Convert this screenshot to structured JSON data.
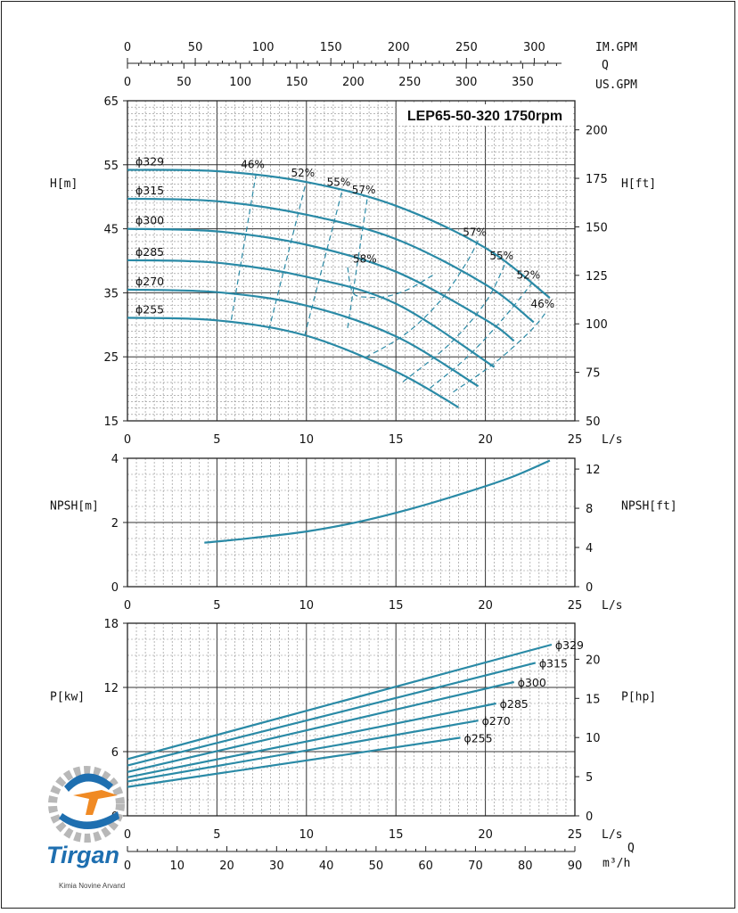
{
  "chart_data": [
    {
      "type": "line",
      "title": "LEP65-50-320 1750rpm",
      "xlabel": "L/s",
      "ylabel": "H[m]",
      "ylabel_right": "H[ft]",
      "xlim": [
        0,
        25
      ],
      "ylim": [
        15,
        65
      ],
      "y2lim": [
        50,
        215
      ],
      "x_ticks": [
        "0",
        "5",
        "10",
        "15",
        "20",
        "25"
      ],
      "y_ticks": [
        "15",
        "25",
        "35",
        "45",
        "55",
        "65"
      ],
      "y2_ticks": [
        "50",
        "75",
        "100",
        "125",
        "150",
        "175",
        "200"
      ],
      "top_axes": [
        {
          "label": "IM.GPM",
          "ticks": [
            "0",
            "50",
            "100",
            "150",
            "200",
            "250",
            "300"
          ],
          "lps_per_unit": 0.075768
        },
        {
          "label": "Q",
          "ticks": [],
          "lps_per_unit": 0
        },
        {
          "label": "US.GPM",
          "ticks": [
            "0",
            "50",
            "100",
            "150",
            "200",
            "250",
            "300",
            "350"
          ],
          "lps_per_unit": 0.06309
        }
      ],
      "series": [
        {
          "name": "ϕ329",
          "x": [
            0,
            5,
            10,
            15,
            20,
            23.6
          ],
          "y": [
            54.2,
            54.0,
            52.3,
            48.6,
            42.0,
            34.2
          ]
        },
        {
          "name": "ϕ315",
          "x": [
            0,
            5,
            10,
            15,
            20,
            22.7
          ],
          "y": [
            49.7,
            49.3,
            47.2,
            43.4,
            36.3,
            30.4
          ]
        },
        {
          "name": "ϕ300",
          "x": [
            0,
            5,
            10,
            15,
            20,
            21.6
          ],
          "y": [
            45.0,
            44.6,
            42.5,
            38.3,
            30.8,
            27.5
          ]
        },
        {
          "name": "ϕ285",
          "x": [
            0,
            5,
            10,
            15,
            20.5
          ],
          "y": [
            40.1,
            39.7,
            37.5,
            33.3,
            23.4
          ]
        },
        {
          "name": "ϕ270",
          "x": [
            0,
            5,
            10,
            15,
            19.6
          ],
          "y": [
            35.5,
            35.1,
            33.0,
            28.2,
            20.4
          ]
        },
        {
          "name": "ϕ255",
          "x": [
            0,
            5,
            10,
            15,
            18.5
          ],
          "y": [
            31.1,
            30.7,
            28.3,
            22.7,
            17.1
          ]
        }
      ],
      "efficiency_lines": [
        {
          "label": "46%",
          "x": [
            5.8,
            7.2
          ],
          "y": [
            30.8,
            53.8
          ]
        },
        {
          "label": "52%",
          "x": [
            7.9,
            10.0
          ],
          "y": [
            29.2,
            52.5
          ]
        },
        {
          "label": "55%",
          "x": [
            9.9,
            12.0
          ],
          "y": [
            28.3,
            51.0
          ]
        },
        {
          "label": "57%",
          "x": [
            12.3,
            13.4
          ],
          "y": [
            29.5,
            49.8
          ]
        },
        {
          "label": "58%",
          "x": [
            12.3,
            12.6,
            13.5,
            14.6,
            15.8,
            17.2
          ],
          "y": [
            39.0,
            35.0,
            34.3,
            34.5,
            35.7,
            38.0
          ]
        },
        {
          "label": "57%",
          "x": [
            13.3,
            15.5,
            17.4,
            18.9,
            19.6
          ],
          "y": [
            24.9,
            28.5,
            33.5,
            39.5,
            43.2
          ]
        },
        {
          "label": "55%",
          "x": [
            15.4,
            18.0,
            20.0,
            21.1
          ],
          "y": [
            21.1,
            27.0,
            33.5,
            39.5
          ]
        },
        {
          "label": "52%",
          "x": [
            16.9,
            19.0,
            21.0,
            22.6
          ],
          "y": [
            20.1,
            25.0,
            31.0,
            36.5
          ]
        },
        {
          "label": "46%",
          "x": [
            18.2,
            20.5,
            22.5,
            23.4
          ],
          "y": [
            19.5,
            24.0,
            29.0,
            32.0
          ]
        }
      ]
    },
    {
      "type": "line",
      "xlabel": "L/s",
      "ylabel": "NPSH[m]",
      "ylabel_right": "NPSH[ft]",
      "xlim": [
        0,
        25
      ],
      "ylim": [
        0,
        4
      ],
      "y2lim": [
        0,
        13.1
      ],
      "x_ticks": [
        "0",
        "5",
        "10",
        "15",
        "20",
        "25"
      ],
      "y_ticks": [
        "0",
        "2",
        "4"
      ],
      "y2_ticks": [
        "0",
        "4",
        "8",
        "12"
      ],
      "series": [
        {
          "x": [
            4.3,
            7,
            10,
            13,
            16,
            19,
            21.5,
            23.6
          ],
          "y": [
            1.37,
            1.52,
            1.72,
            2.03,
            2.45,
            2.95,
            3.42,
            3.93
          ]
        }
      ]
    },
    {
      "type": "line",
      "xlabel": "L/s",
      "ylabel": "P[kw]",
      "ylabel_right": "P[hp]",
      "xlim": [
        0,
        25
      ],
      "ylim": [
        0,
        18
      ],
      "y2lim": [
        0,
        24.6
      ],
      "x_ticks": [
        "0",
        "5",
        "10",
        "15",
        "20",
        "25"
      ],
      "y_ticks": [
        "0",
        "6",
        "12",
        "18"
      ],
      "y2_ticks": [
        "0",
        "5",
        "10",
        "15",
        "20"
      ],
      "bottom_axis": {
        "label": "m³/h",
        "ticks": [
          "0",
          "10",
          "20",
          "30",
          "40",
          "50",
          "60",
          "70",
          "80",
          "90"
        ],
        "lps_per_unit": 0.27778
      },
      "bottom_axis_q": "Q",
      "series": [
        {
          "name": "ϕ329",
          "x": [
            0,
            23.7
          ],
          "y": [
            5.3,
            16.0
          ]
        },
        {
          "name": "ϕ315",
          "x": [
            0,
            22.8
          ],
          "y": [
            4.7,
            14.3
          ]
        },
        {
          "name": "ϕ300",
          "x": [
            0,
            21.6
          ],
          "y": [
            4.1,
            12.5
          ]
        },
        {
          "name": "ϕ285",
          "x": [
            0,
            20.6
          ],
          "y": [
            3.6,
            10.5
          ]
        },
        {
          "name": "ϕ270",
          "x": [
            0,
            19.6
          ],
          "y": [
            3.2,
            8.9
          ]
        },
        {
          "name": "ϕ255",
          "x": [
            0,
            18.6
          ],
          "y": [
            2.7,
            7.3
          ]
        }
      ]
    }
  ],
  "logo": {
    "name": "Tirgan",
    "sub": "Kimia Novine Arvand"
  },
  "colors": {
    "curve": "#2a8aa6",
    "grid_minor": "#8a8a8a",
    "grid_major": "#333333",
    "logo_blue": "#1e6fb0",
    "logo_orange": "#f08a24"
  }
}
